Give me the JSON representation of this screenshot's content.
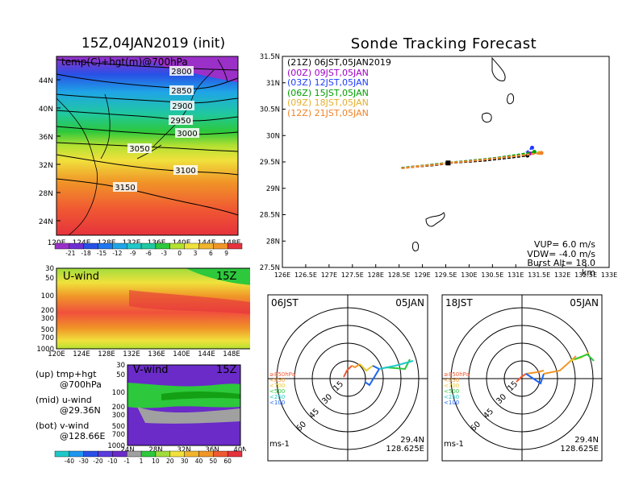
{
  "map_panel": {
    "title": "15Z,04JAN2019 (init)",
    "label": "temp(C)+hgt(m)@700hPa",
    "lat_ticks": [
      "44N",
      "40N",
      "36N",
      "32N",
      "28N",
      "24N"
    ],
    "lon_ticks": [
      "120E",
      "124E",
      "128E",
      "132E",
      "136E",
      "140E",
      "144E",
      "148E"
    ],
    "contours": [
      "2800",
      "2850",
      "2900",
      "2950",
      "3000",
      "3050",
      "3100",
      "3150"
    ],
    "colorbar": [
      "-21",
      "-18",
      "-15",
      "-12",
      "-9",
      "-6",
      "-3",
      "0",
      "3",
      "6",
      "9"
    ]
  },
  "uwind_panel": {
    "title": "U-wind",
    "time": "15Z",
    "p_ticks": [
      "30",
      "50",
      "100",
      "200",
      "300",
      "500",
      "700",
      "1000"
    ],
    "lon_ticks": [
      "120E",
      "124E",
      "128E",
      "132E",
      "136E",
      "140E",
      "144E",
      "148E"
    ]
  },
  "vwind_panel": {
    "title": "V-wind",
    "time": "15Z",
    "p_ticks": [
      "30",
      "50",
      "100",
      "200",
      "300",
      "500",
      "700",
      "1000"
    ],
    "lat_ticks": [
      "24N",
      "28N",
      "32N",
      "36N",
      "40N"
    ],
    "colorbar": [
      "-40",
      "-30",
      "-20",
      "-10",
      "-1",
      "1",
      "10",
      "20",
      "30",
      "40",
      "50",
      "60"
    ]
  },
  "legend_text": {
    "up": "(up) tmp+hgt",
    "up2": "@700hPa",
    "mid": "(mid) u-wind",
    "mid2": "@29.36N",
    "bot": "(bot) v-wind",
    "bot2": "@128.66E"
  },
  "track_panel": {
    "title": "Sonde Tracking Forecast",
    "lat_ticks": [
      "31.5N",
      "31N",
      "30.5N",
      "30N",
      "29.5N",
      "29N",
      "28.5N",
      "28N",
      "27.5N"
    ],
    "lon_ticks": [
      "126E",
      "126.5E",
      "127E",
      "127.5E",
      "128E",
      "128.5E",
      "129E",
      "129.5E",
      "130E",
      "130.5E",
      "131E",
      "131.5E",
      "132E",
      "132.5E",
      "133E"
    ],
    "legend": [
      {
        "text": "(21Z)  06JST,05JAN2019",
        "color": "#000000"
      },
      {
        "text": "(00Z)  09JST,05JAN",
        "color": "#a000c8"
      },
      {
        "text": "(03Z)  12JST,05JAN",
        "color": "#1e3cff"
      },
      {
        "text": "(06Z)  15JST,05JAN",
        "color": "#00a000"
      },
      {
        "text": "(09Z)  18JST,05JAN",
        "color": "#e6af2d"
      },
      {
        "text": "(12Z)  21JST,05JAN",
        "color": "#f08228"
      }
    ],
    "params": [
      "VUP= 6.0 m/s",
      "VDW= -4.0 m/s",
      "Burst Alt= 18.0 km"
    ]
  },
  "hodo_left": {
    "time": "06JST",
    "date": "05JAN",
    "speeds": [
      "15",
      "30",
      "45",
      "60"
    ],
    "levels": [
      "≥850hPa",
      "<850",
      "<700",
      "<500",
      "<250",
      "<100"
    ],
    "unit": "ms-1",
    "lat": "29.4N",
    "lon": "128.625E"
  },
  "hodo_right": {
    "time": "18JST",
    "date": "05JAN",
    "speeds": [
      "15",
      "30",
      "45",
      "60"
    ],
    "levels": [
      "≥850hPa",
      "<850",
      "<700",
      "<500",
      "<250",
      "<100"
    ],
    "unit": "ms-1",
    "lat": "29.4N",
    "lon": "128.625E"
  },
  "chart_data": [
    {
      "type": "line",
      "title": "Sonde Tracking Forecast",
      "x_range": [
        126,
        133
      ],
      "y_range": [
        27.5,
        31.5
      ],
      "series": [
        {
          "name": "(21Z) 06JST,05JAN2019",
          "x": [
            128.55,
            128.9,
            129.3,
            129.6,
            129.95,
            130.3,
            130.6,
            130.9,
            131.1,
            131.25
          ],
          "y": [
            29.38,
            29.41,
            29.44,
            29.48,
            29.5,
            29.52,
            29.55,
            29.58,
            29.6,
            29.62
          ]
        },
        {
          "name": "(00Z) 09JST,05JAN",
          "x": [
            128.55,
            128.9,
            129.3,
            129.6,
            129.95,
            130.3,
            130.6,
            130.9,
            131.15,
            131.3
          ],
          "y": [
            29.39,
            29.42,
            29.45,
            29.49,
            29.51,
            29.54,
            29.57,
            29.6,
            29.63,
            29.66
          ]
        },
        {
          "name": "(03Z) 12JST,05JAN",
          "x": [
            128.55,
            128.9,
            129.3,
            129.6,
            129.95,
            130.3,
            130.6,
            130.9,
            131.2,
            131.35
          ],
          "y": [
            29.39,
            29.42,
            29.46,
            29.49,
            29.52,
            29.55,
            29.58,
            29.61,
            29.66,
            29.77
          ]
        },
        {
          "name": "(06Z) 15JST,05JAN",
          "x": [
            128.55,
            128.9,
            129.3,
            129.6,
            129.95,
            130.3,
            130.6,
            130.9,
            131.2,
            131.4
          ],
          "y": [
            29.39,
            29.42,
            29.46,
            29.49,
            29.52,
            29.55,
            29.58,
            29.62,
            29.66,
            29.69
          ]
        },
        {
          "name": "(09Z) 18JST,05JAN",
          "x": [
            128.55,
            128.9,
            129.3,
            129.6,
            129.95,
            130.3,
            130.6,
            130.9,
            131.25,
            131.5
          ],
          "y": [
            29.38,
            29.42,
            29.45,
            29.49,
            29.51,
            29.54,
            29.57,
            29.6,
            29.64,
            29.67
          ]
        },
        {
          "name": "(12Z) 21JST,05JAN",
          "x": [
            128.55,
            128.9,
            129.3,
            129.6,
            129.95,
            130.3,
            130.6,
            130.9,
            131.3,
            131.55
          ],
          "y": [
            29.38,
            29.41,
            29.45,
            29.48,
            29.51,
            29.54,
            29.57,
            29.6,
            29.64,
            29.67
          ]
        }
      ]
    }
  ]
}
